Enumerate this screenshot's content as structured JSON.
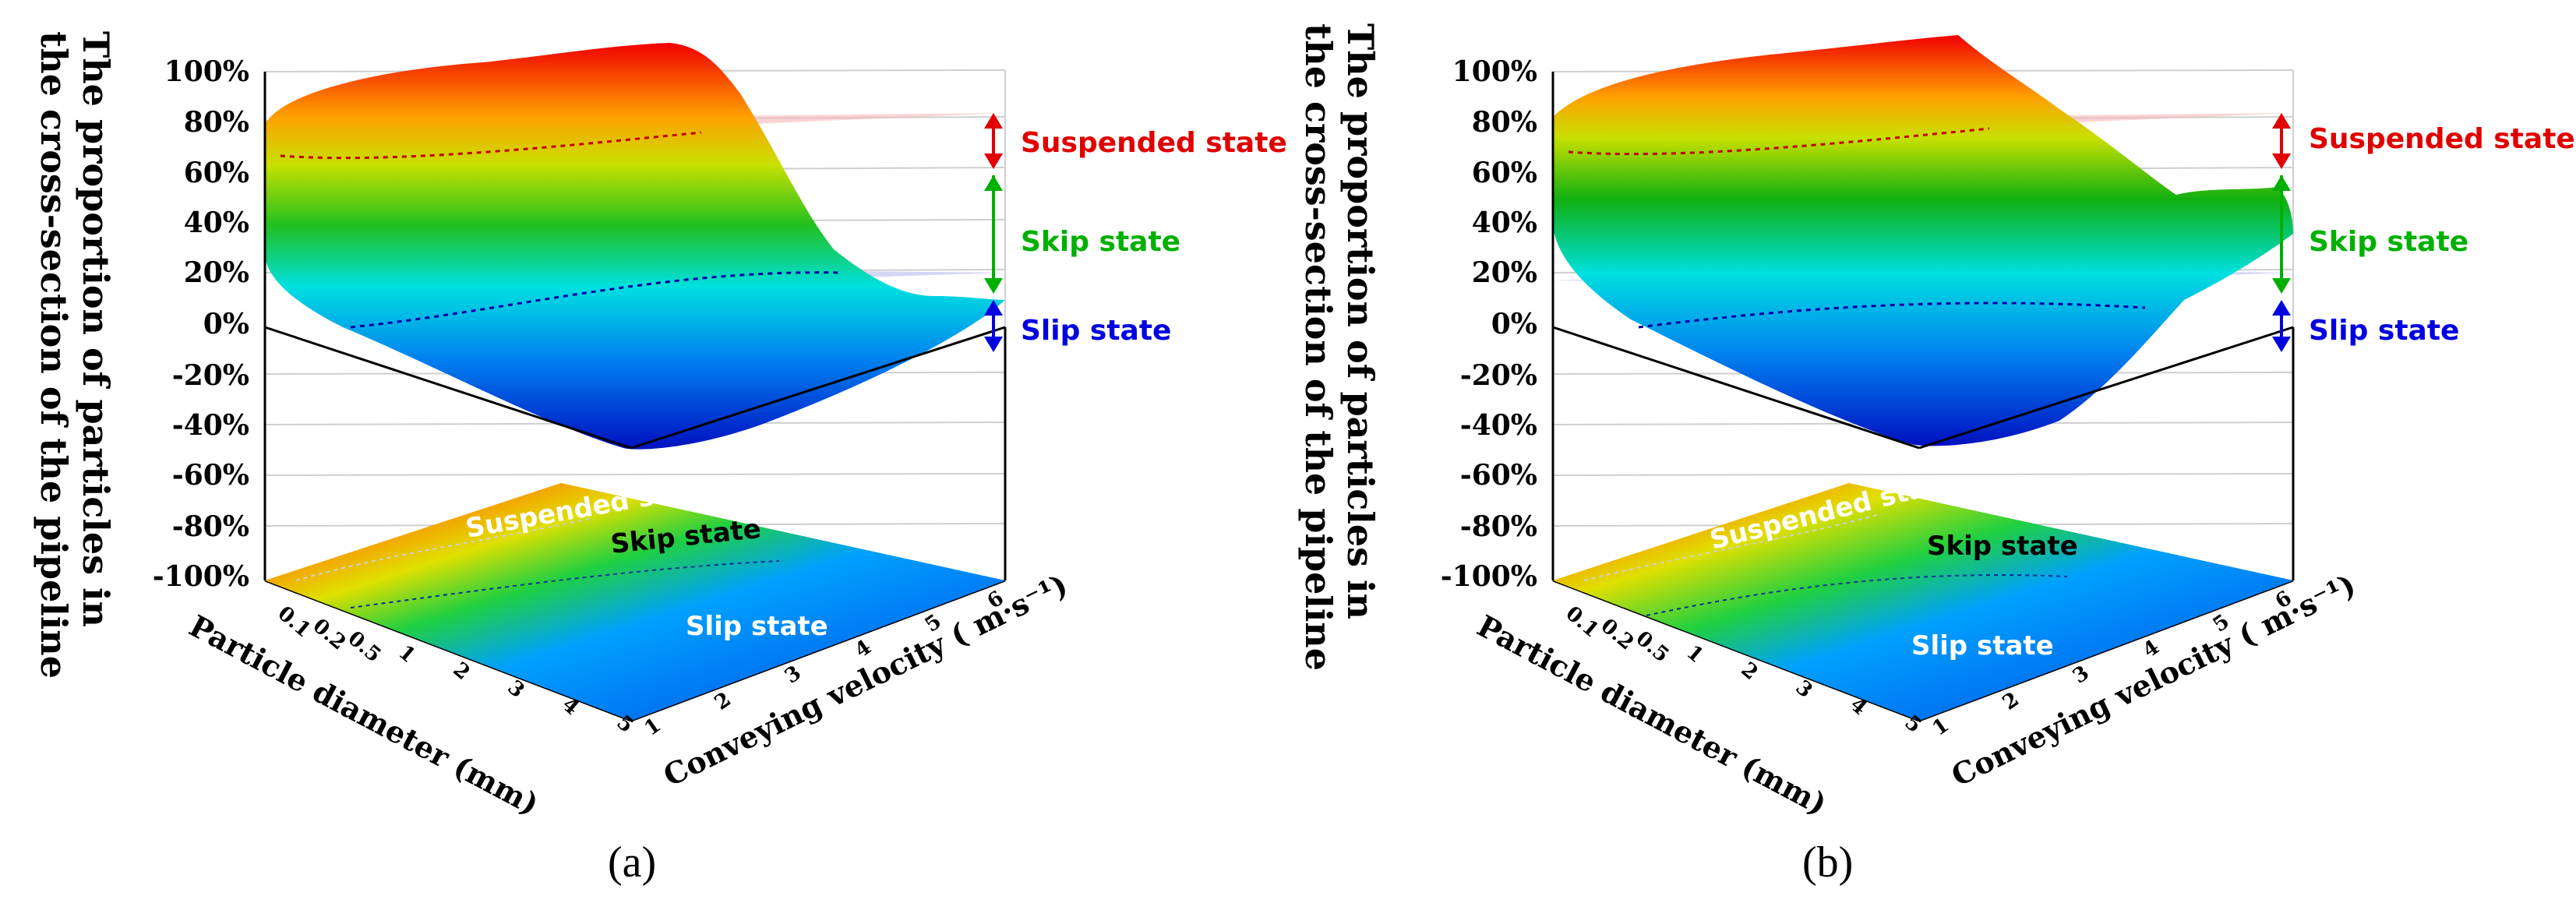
{
  "chart_data": [
    {
      "type": "surface3d",
      "panel": "(a)",
      "zlabel": [
        "The proportion of particles in",
        "the cross-section of the pipeline"
      ],
      "xlabel": "Particle diameter (mm)",
      "ylabel": "Conveying velocity ( m·s⁻¹)",
      "xticks": [
        "0.1",
        "0.2",
        "0.5",
        "1",
        "2",
        "3",
        "4",
        "5"
      ],
      "yticks": [
        "1",
        "2",
        "3",
        "4",
        "5",
        "6"
      ],
      "zticks": [
        "100%",
        "80%",
        "60%",
        "40%",
        "20%",
        "0%",
        "-20%",
        "-40%",
        "-60%",
        "-80%",
        "-100%"
      ],
      "zlim": [
        -100,
        100
      ],
      "thresholds": {
        "suspended": 80,
        "slip": 20
      },
      "states": [
        "Suspended state",
        "Skip state",
        "Slip state"
      ],
      "floor_labels": [
        "Suspended state",
        "Skip state",
        "Slip state"
      ],
      "colors": {
        "suspended": "#e00000",
        "skip": "#00b000",
        "slip": "#0000e0"
      }
    },
    {
      "type": "surface3d",
      "panel": "(b)",
      "zlabel": [
        "The proportion of particles in",
        "the cross-section of the pipeline"
      ],
      "xlabel": "Particle diameter (mm)",
      "ylabel": "Conveying velocity ( m·s⁻¹)",
      "xticks": [
        "0.1",
        "0.2",
        "0.5",
        "1",
        "2",
        "3",
        "4",
        "5"
      ],
      "yticks": [
        "1",
        "2",
        "3",
        "4",
        "5",
        "6"
      ],
      "zticks": [
        "100%",
        "80%",
        "60%",
        "40%",
        "20%",
        "0%",
        "-20%",
        "-40%",
        "-60%",
        "-80%",
        "-100%"
      ],
      "zlim": [
        -100,
        100
      ],
      "thresholds": {
        "suspended": 80,
        "slip": 20
      },
      "states": [
        "Suspended state",
        "Skip state",
        "Slip state"
      ],
      "floor_labels": [
        "Suspended state",
        "Skip state",
        "Slip state"
      ],
      "colors": {
        "suspended": "#e00000",
        "skip": "#00b000",
        "slip": "#0000e0"
      }
    }
  ]
}
